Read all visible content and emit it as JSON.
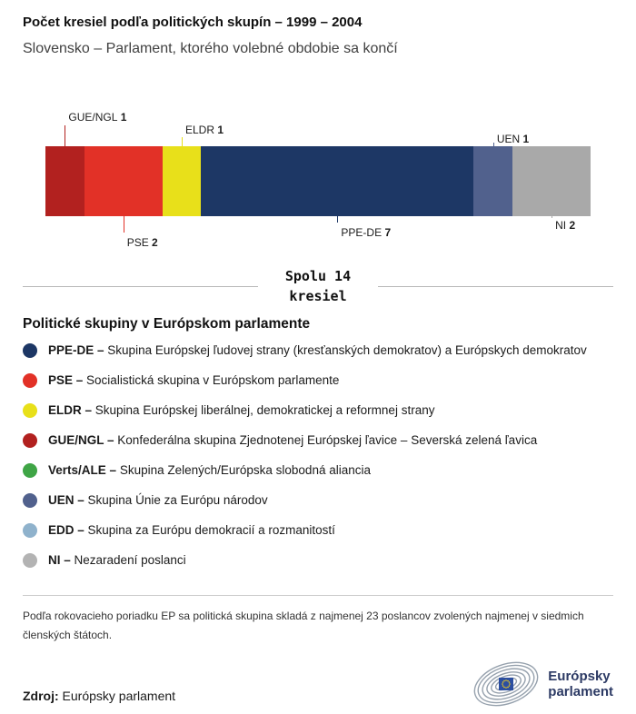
{
  "chart_data": {
    "type": "bar",
    "orientation": "horizontal-stacked",
    "title": "Počet kresiel podľa politických skupín – 1999 – 2004",
    "subtitle": "Slovensko – Parlament, ktorého volebné obdobie sa končí",
    "total_seats": 14,
    "total_label_line1": "Spolu 14",
    "total_label_line2": "kresiel",
    "categories": [
      "GUE/NGL",
      "PSE",
      "ELDR",
      "PPE-DE",
      "UEN",
      "NI"
    ],
    "values": [
      1,
      2,
      1,
      7,
      1,
      2
    ],
    "segments": [
      {
        "group": "GUE/NGL",
        "seats": 1,
        "color": "#b2211f",
        "label_side": "above",
        "label_tier": 2
      },
      {
        "group": "PSE",
        "seats": 2,
        "color": "#e23127",
        "label_side": "below",
        "label_tier": 2
      },
      {
        "group": "ELDR",
        "seats": 1,
        "color": "#e8e01a",
        "label_side": "above",
        "label_tier": 1
      },
      {
        "group": "PPE-DE",
        "seats": 7,
        "color": "#1d3765",
        "label_side": "below",
        "label_tier": 1
      },
      {
        "group": "UEN",
        "seats": 1,
        "color": "#51618d",
        "label_side": "above",
        "label_tier": 0
      },
      {
        "group": "NI",
        "seats": 2,
        "color": "#a9a9a9",
        "label_side": "below",
        "label_tier": 0
      }
    ]
  },
  "legend": {
    "heading": "Politické skupiny v Európskom parlamente",
    "items": [
      {
        "abbr": "PPE-DE –",
        "desc": "Skupina Európskej ľudovej strany (kresťanských demokratov) a Európskych demokratov",
        "color": "#1d3765"
      },
      {
        "abbr": "PSE –",
        "desc": "Socialistická skupina v Európskom parlamente",
        "color": "#e23127"
      },
      {
        "abbr": "ELDR –",
        "desc": "Skupina Európskej liberálnej, demokratickej a reformnej strany",
        "color": "#e8e01a"
      },
      {
        "abbr": "GUE/NGL –",
        "desc": "Konfederálna skupina Zjednotenej Európskej ľavice – Severská zelená ľavica",
        "color": "#b2211f"
      },
      {
        "abbr": "Verts/ALE –",
        "desc": "Skupina Zelených/Európska slobodná aliancia",
        "color": "#3fa546"
      },
      {
        "abbr": "UEN –",
        "desc": "Skupina Únie za Európu národov",
        "color": "#51618d"
      },
      {
        "abbr": "EDD –",
        "desc": "Skupina za Európu demokracií a rozmanitostí",
        "color": "#8fb2cc"
      },
      {
        "abbr": "NI –",
        "desc": "Nezaradení poslanci",
        "color": "#b3b3b3"
      }
    ]
  },
  "footnote": "Podľa rokovacieho poriadku EP sa politická skupina skladá z najmenej 23 poslancov zvolených najmenej v siedmich členských štátoch.",
  "source": {
    "label": "Zdroj:",
    "value": "Európsky parlament"
  },
  "logo": {
    "line1": "Európsky",
    "line2": "parlament"
  }
}
